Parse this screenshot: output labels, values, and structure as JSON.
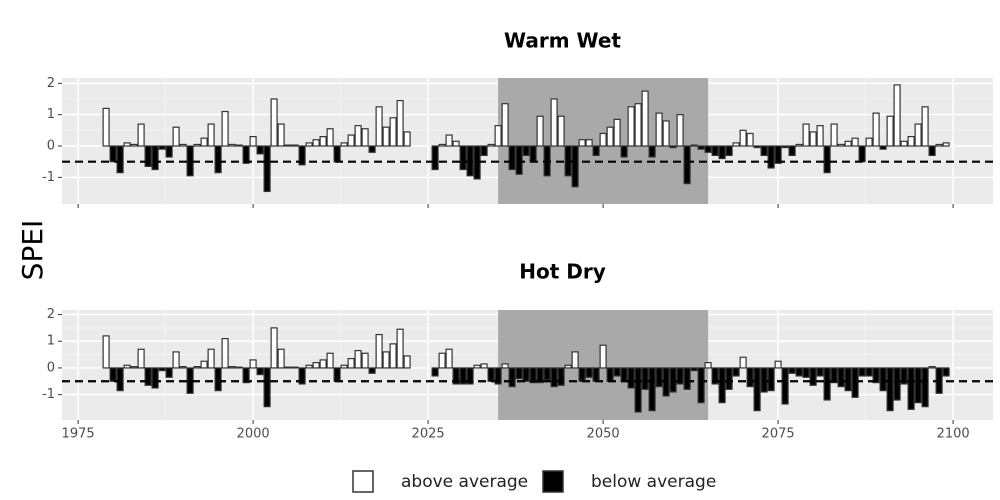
{
  "ylabel": "SPEI",
  "legend": [
    {
      "name": "above average",
      "color": "#ffffff"
    },
    {
      "name": "below average",
      "color": "#000000"
    }
  ],
  "chart_data": [
    {
      "type": "bar",
      "title": "Warm Wet",
      "x": [
        1979,
        1980,
        1981,
        1982,
        1983,
        1984,
        1985,
        1986,
        1987,
        1988,
        1989,
        1990,
        1991,
        1992,
        1993,
        1994,
        1995,
        1996,
        1997,
        1998,
        1999,
        2000,
        2001,
        2002,
        2003,
        2004,
        2005,
        2006,
        2007,
        2008,
        2009,
        2010,
        2011,
        2012,
        2013,
        2014,
        2015,
        2016,
        2017,
        2018,
        2019,
        2020,
        2021,
        2022,
        2026,
        2027,
        2028,
        2029,
        2030,
        2031,
        2032,
        2033,
        2034,
        2035,
        2036,
        2037,
        2038,
        2039,
        2040,
        2041,
        2042,
        2043,
        2044,
        2045,
        2046,
        2047,
        2048,
        2049,
        2050,
        2051,
        2052,
        2053,
        2054,
        2055,
        2056,
        2057,
        2058,
        2059,
        2060,
        2061,
        2062,
        2063,
        2064,
        2065,
        2066,
        2067,
        2068,
        2069,
        2070,
        2071,
        2072,
        2073,
        2074,
        2075,
        2076,
        2077,
        2078,
        2079,
        2080,
        2081,
        2082,
        2083,
        2084,
        2085,
        2086,
        2087,
        2088,
        2089,
        2090,
        2091,
        2092,
        2093,
        2094,
        2095,
        2096,
        2097,
        2098,
        2099
      ],
      "values": [
        1.2,
        -0.5,
        -0.85,
        0.1,
        0.05,
        0.7,
        -0.65,
        -0.75,
        -0.1,
        -0.35,
        0.6,
        0.05,
        -0.95,
        0.05,
        0.25,
        0.7,
        -0.85,
        1.1,
        0.05,
        0.03,
        -0.55,
        0.3,
        -0.25,
        -1.45,
        1.5,
        0.7,
        0.03,
        0.03,
        -0.6,
        0.1,
        0.2,
        0.3,
        0.55,
        -0.5,
        0.1,
        0.35,
        0.65,
        0.55,
        -0.2,
        1.25,
        0.6,
        0.9,
        1.45,
        0.45,
        -0.75,
        0.05,
        0.35,
        0.15,
        -0.75,
        -0.95,
        -1.05,
        -0.3,
        0.05,
        0.65,
        1.35,
        -0.75,
        -0.9,
        -0.3,
        -0.5,
        0.95,
        -0.95,
        1.5,
        0.95,
        -0.95,
        -1.3,
        0.2,
        0.2,
        -0.3,
        0.4,
        0.6,
        0.85,
        -0.35,
        1.25,
        1.35,
        1.75,
        -0.35,
        1.05,
        0.8,
        -0.05,
        1.0,
        -1.2,
        0.03,
        -0.1,
        -0.2,
        -0.3,
        -0.4,
        -0.3,
        0.1,
        0.5,
        0.4,
        -0.05,
        -0.3,
        -0.7,
        -0.55,
        -0.05,
        -0.3,
        0.05,
        0.7,
        0.45,
        0.65,
        -0.85,
        0.7,
        0.05,
        0.15,
        0.25,
        -0.5,
        0.25,
        1.05,
        -0.1,
        0.95,
        1.95,
        0.15,
        0.3,
        0.7,
        1.25,
        -0.3,
        0.05,
        0.1
      ],
      "xlim": [
        1972.7,
        2105.7
      ],
      "xticks": [
        1975,
        2000,
        2025,
        2050,
        2075,
        2100
      ],
      "show_xtick_labels": false,
      "ylim": [
        -1.85,
        2.17
      ],
      "yticks": [
        -1,
        0,
        1,
        2
      ],
      "grid": true,
      "highlight": [
        2035,
        2065
      ],
      "highlight_color": "#a9a9a9",
      "hline": -0.5
    },
    {
      "type": "bar",
      "title": "Hot Dry",
      "x": [
        1979,
        1980,
        1981,
        1982,
        1983,
        1984,
        1985,
        1986,
        1987,
        1988,
        1989,
        1990,
        1991,
        1992,
        1993,
        1994,
        1995,
        1996,
        1997,
        1998,
        1999,
        2000,
        2001,
        2002,
        2003,
        2004,
        2005,
        2006,
        2007,
        2008,
        2009,
        2010,
        2011,
        2012,
        2013,
        2014,
        2015,
        2016,
        2017,
        2018,
        2019,
        2020,
        2021,
        2022,
        2026,
        2027,
        2028,
        2029,
        2030,
        2031,
        2032,
        2033,
        2034,
        2035,
        2036,
        2037,
        2038,
        2039,
        2040,
        2041,
        2042,
        2043,
        2044,
        2045,
        2046,
        2047,
        2048,
        2049,
        2050,
        2051,
        2052,
        2053,
        2054,
        2055,
        2056,
        2057,
        2058,
        2059,
        2060,
        2061,
        2062,
        2063,
        2064,
        2065,
        2066,
        2067,
        2068,
        2069,
        2070,
        2071,
        2072,
        2073,
        2074,
        2075,
        2076,
        2077,
        2078,
        2079,
        2080,
        2081,
        2082,
        2083,
        2084,
        2085,
        2086,
        2087,
        2088,
        2089,
        2090,
        2091,
        2092,
        2093,
        2094,
        2095,
        2096,
        2097,
        2098,
        2099
      ],
      "values": [
        1.2,
        -0.5,
        -0.85,
        0.1,
        0.05,
        0.7,
        -0.65,
        -0.75,
        -0.1,
        -0.35,
        0.6,
        0.05,
        -0.95,
        0.05,
        0.25,
        0.7,
        -0.85,
        1.1,
        0.05,
        0.03,
        -0.55,
        0.3,
        -0.25,
        -1.45,
        1.5,
        0.7,
        0.03,
        0.03,
        -0.6,
        0.1,
        0.2,
        0.3,
        0.55,
        -0.5,
        0.1,
        0.35,
        0.65,
        0.55,
        -0.2,
        1.25,
        0.6,
        0.9,
        1.45,
        0.45,
        -0.3,
        0.55,
        0.7,
        -0.6,
        -0.6,
        -0.6,
        0.1,
        0.15,
        -0.5,
        -0.6,
        0.15,
        -0.7,
        -0.4,
        -0.5,
        -0.55,
        -0.55,
        -0.45,
        -0.7,
        -0.65,
        0.1,
        0.6,
        -0.5,
        -0.35,
        -0.5,
        0.85,
        -0.5,
        -0.3,
        -0.5,
        -0.75,
        -1.65,
        -0.8,
        -1.6,
        -0.7,
        -1.05,
        -0.9,
        -0.6,
        -0.8,
        -0.1,
        -1.3,
        0.2,
        -0.6,
        -1.3,
        -0.8,
        -0.3,
        0.4,
        -0.7,
        -1.6,
        -0.9,
        -0.85,
        0.25,
        -1.35,
        -0.2,
        -0.3,
        -0.35,
        -0.65,
        -0.3,
        -1.2,
        -0.55,
        -0.7,
        -0.85,
        -1.1,
        -0.3,
        -0.3,
        -0.55,
        -0.85,
        -1.6,
        -1.2,
        -0.6,
        -1.55,
        -1.3,
        -1.45,
        0.05,
        -0.95,
        -0.3
      ],
      "xlim": [
        1972.7,
        2105.7
      ],
      "xticks": [
        1975,
        2000,
        2025,
        2050,
        2075,
        2100
      ],
      "show_xtick_labels": true,
      "ylim": [
        -1.95,
        2.17
      ],
      "yticks": [
        -1,
        0,
        1,
        2
      ],
      "grid": true,
      "highlight": [
        2035,
        2065
      ],
      "highlight_color": "#a9a9a9",
      "hline": -0.5
    }
  ]
}
